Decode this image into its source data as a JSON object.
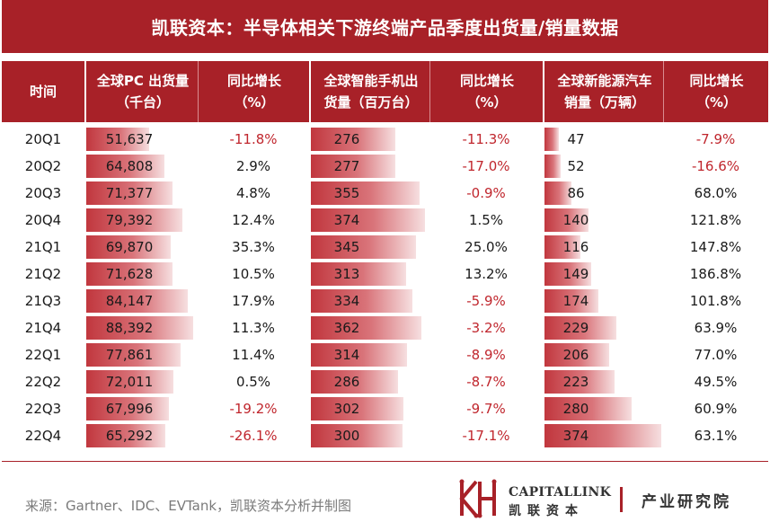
{
  "title": "凯联资本：半导体相关下游终端产品季度出货量/销量数据",
  "headers": [
    [
      "时间"
    ],
    [
      "全球PC 出货量",
      "（千台）"
    ],
    [
      "同比增长",
      "（%）"
    ],
    [
      "全球智能手机出",
      "货量（百万台）"
    ],
    [
      "同比增长",
      "（%）"
    ],
    [
      "全球新能源汽车",
      "销量（万辆）"
    ],
    [
      "同比增长",
      "（%）"
    ]
  ],
  "colors": {
    "brand": "#a82128",
    "negative": "#c0262d",
    "bar": "#c1373e"
  },
  "chart_data": {
    "type": "table",
    "title": "凯联资本：半导体相关下游终端产品季度出货量/销量数据",
    "categories": [
      "20Q1",
      "20Q2",
      "20Q3",
      "20Q4",
      "21Q1",
      "21Q2",
      "21Q3",
      "21Q4",
      "22Q1",
      "22Q2",
      "22Q3",
      "22Q4"
    ],
    "series": [
      {
        "name": "全球PC 出货量（千台）",
        "values": [
          51637,
          64808,
          71377,
          79392,
          69870,
          71628,
          84147,
          88392,
          77861,
          72011,
          67996,
          65292
        ],
        "labels": [
          "51,637",
          "64,808",
          "71,377",
          "79,392",
          "69,870",
          "71,628",
          "84,147",
          "88,392",
          "77,861",
          "72,011",
          "67,996",
          "65,292"
        ]
      },
      {
        "name": "同比增长（%）",
        "values": [
          -11.8,
          2.9,
          4.8,
          12.4,
          35.3,
          10.5,
          17.9,
          11.3,
          11.4,
          0.5,
          -19.2,
          -26.1
        ],
        "labels": [
          "-11.8%",
          "2.9%",
          "4.8%",
          "12.4%",
          "35.3%",
          "10.5%",
          "17.9%",
          "11.3%",
          "11.4%",
          "0.5%",
          "-19.2%",
          "-26.1%"
        ]
      },
      {
        "name": "全球智能手机出货量（百万台）",
        "values": [
          276,
          277,
          355,
          374,
          345,
          313,
          334,
          362,
          314,
          286,
          302,
          300
        ],
        "labels": [
          "276",
          "277",
          "355",
          "374",
          "345",
          "313",
          "334",
          "362",
          "314",
          "286",
          "302",
          "300"
        ]
      },
      {
        "name": "同比增长（%）",
        "values": [
          -11.3,
          -17.0,
          -0.9,
          1.5,
          25.0,
          13.2,
          -5.9,
          -3.2,
          -8.9,
          -8.7,
          -9.7,
          -17.1
        ],
        "labels": [
          "-11.3%",
          "-17.0%",
          "-0.9%",
          "1.5%",
          "25.0%",
          "13.2%",
          "-5.9%",
          "-3.2%",
          "-8.9%",
          "-8.7%",
          "-9.7%",
          "-17.1%"
        ]
      },
      {
        "name": "全球新能源汽车销量（万辆）",
        "values": [
          47,
          52,
          86,
          140,
          116,
          149,
          174,
          229,
          206,
          223,
          280,
          374
        ],
        "labels": [
          "47",
          "52",
          "86",
          "140",
          "116",
          "149",
          "174",
          "229",
          "206",
          "223",
          "280",
          "374"
        ]
      },
      {
        "name": "同比增长（%）",
        "values": [
          -7.9,
          -16.6,
          68.0,
          121.8,
          147.8,
          186.8,
          101.8,
          63.9,
          77.0,
          49.5,
          60.9,
          63.1
        ],
        "labels": [
          "-7.9%",
          "-16.6%",
          "68.0%",
          "121.8%",
          "147.8%",
          "186.8%",
          "101.8%",
          "63.9%",
          "77.0%",
          "49.5%",
          "60.9%",
          "63.1%"
        ]
      }
    ]
  },
  "footer": {
    "source": "来源：Gartner、IDC、EVTank，凯联资本分析并制图",
    "logo_en": "CAPITALLINK",
    "logo_cn": "凯联资本",
    "logo_sub": "产业研究院"
  }
}
